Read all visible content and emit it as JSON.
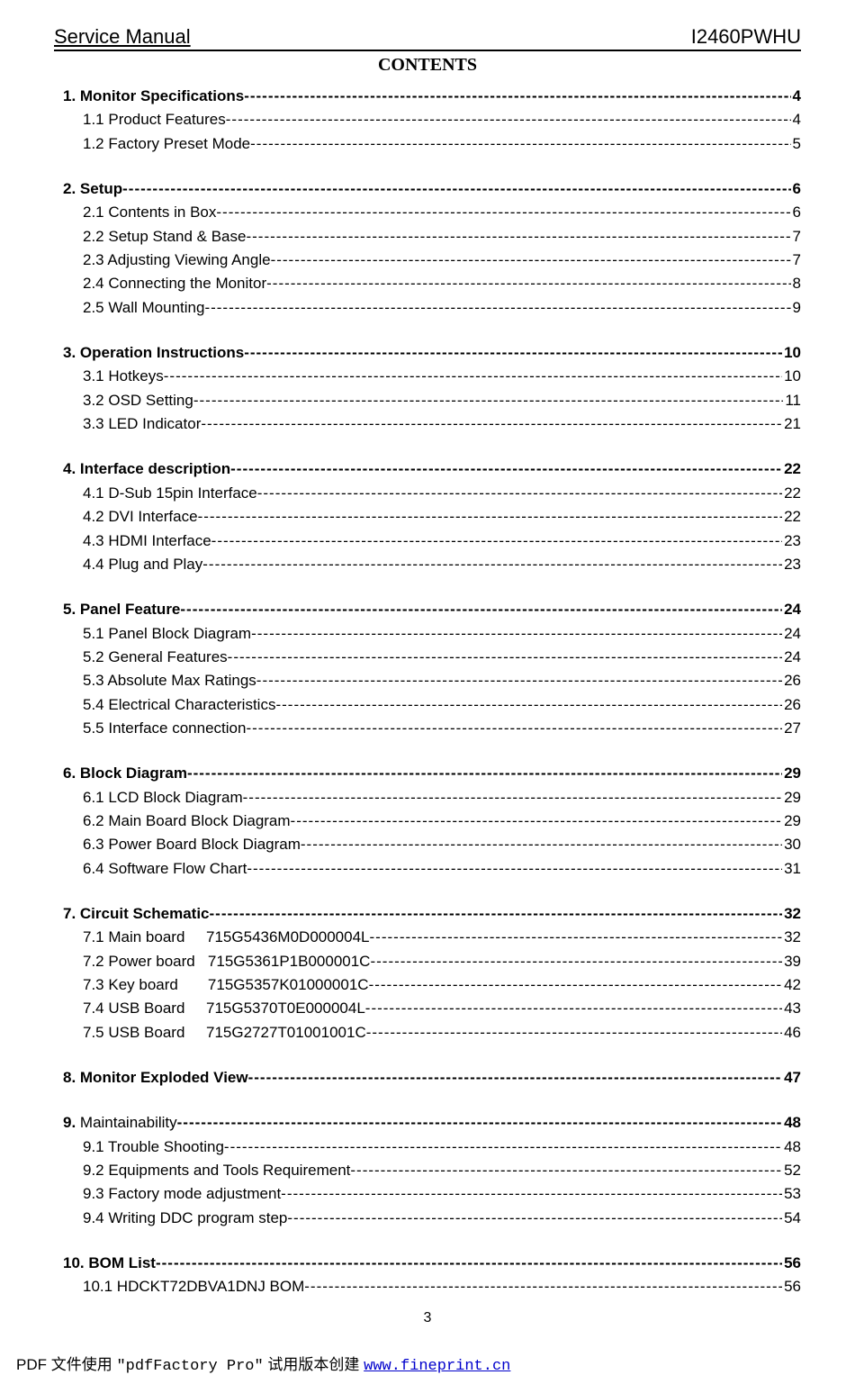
{
  "header": {
    "left": "Service Manual",
    "right": "I2460PWHU"
  },
  "contentsTitle": "CONTENTS",
  "pageNumber": "3",
  "sections": [
    {
      "heading": {
        "label": "1. Monitor Specifications",
        "page": "4"
      },
      "items": [
        {
          "label": "1.1 Product Features ",
          "page": "4"
        },
        {
          "label": "1.2 Factory Preset Mode ",
          "page": "5"
        }
      ]
    },
    {
      "heading": {
        "label": "2. Setup ",
        "page": "6"
      },
      "items": [
        {
          "label": "2.1 Contents in Box ",
          "page": "6"
        },
        {
          "label": "2.2 Setup Stand & Base",
          "page": "7"
        },
        {
          "label": "2.3 Adjusting Viewing Angle",
          "page": "7"
        },
        {
          "label": "2.4 Connecting the Monitor ",
          "page": "8"
        },
        {
          "label": "2.5 Wall Mounting ",
          "page": "9"
        }
      ]
    },
    {
      "heading": {
        "label": "3. Operation Instructions",
        "page": "10"
      },
      "items": [
        {
          "label": "3.1 Hotkeys ",
          "page": "10"
        },
        {
          "label": "3.2 OSD Setting ",
          "page": "11"
        },
        {
          "label": "3.3 LED Indicator",
          "page": "21"
        }
      ]
    },
    {
      "heading": {
        "label": "4. Interface description ",
        "page": "22"
      },
      "items": [
        {
          "label": "4.1 D-Sub 15pin Interface ",
          "page": "22"
        },
        {
          "label": "4.2 DVI Interface",
          "page": "22"
        },
        {
          "label": "4.3 HDMI Interface ",
          "page": "23"
        },
        {
          "label": "4.4 Plug and Play",
          "page": "23"
        }
      ]
    },
    {
      "heading": {
        "label": "5. Panel Feature",
        "page": "24"
      },
      "items": [
        {
          "label": "5.1 Panel Block Diagram ",
          "page": "24"
        },
        {
          "label": "5.2 General Features",
          "page": "24"
        },
        {
          "label": "5.3 Absolute Max Ratings ",
          "page": "26"
        },
        {
          "label": "5.4 Electrical Characteristics",
          "page": "26"
        },
        {
          "label": "5.5 Interface connection ",
          "page": "27"
        }
      ]
    },
    {
      "heading": {
        "label": "6. Block Diagram",
        "page": "29"
      },
      "items": [
        {
          "label": "6.1 LCD Block Diagram",
          "page": "29"
        },
        {
          "label": "6.2 Main Board Block Diagram",
          "page": "29"
        },
        {
          "label": "6.3 Power Board Block Diagram",
          "page": "30"
        },
        {
          "label": "6.4 Software Flow Chart  ",
          "page": "31"
        }
      ]
    },
    {
      "heading": {
        "label": "7. Circuit Schematic ",
        "page": "32"
      },
      "items": [
        {
          "label": "7.1 Main board     715G5436M0D000004L ",
          "page": "32"
        },
        {
          "label": "7.2 Power board   715G5361P1B000001C",
          "page": "39"
        },
        {
          "label": "7.3 Key board       715G5357K01000001C",
          "page": "42"
        },
        {
          "label": "7.4 USB Board     715G5370T0E000004L",
          "page": "43"
        },
        {
          "label": "7.5 USB Board     715G2727T01001001C",
          "page": "46"
        }
      ]
    },
    {
      "heading": {
        "label": "8. Monitor Exploded View",
        "page": "47"
      },
      "items": []
    },
    {
      "heading": {
        "label": "9. ",
        "labelExtra": "Maintainability",
        "page": "48"
      },
      "items": [
        {
          "label": "9.1 Trouble Shooting ",
          "page": "48"
        },
        {
          "label": "9.2 Equipments and Tools Requirement ",
          "page": "52"
        },
        {
          "label": "9.3 Factory mode adjustment",
          "page": "53"
        },
        {
          "label": "9.4 Writing DDC program step ",
          "page": "54"
        }
      ]
    },
    {
      "heading": {
        "label": "10. BOM List ",
        "page": "56"
      },
      "items": [
        {
          "label": "10.1 HDCKT72DBVA1DNJ BOM ",
          "page": "56"
        }
      ],
      "tight": true
    }
  ],
  "footer": {
    "prefix": "PDF 文件使用 ",
    "quoted": "\"pdfFactory Pro\"",
    "middle": " 试用版本创建 ",
    "linkText": "www.fineprint.cn"
  }
}
